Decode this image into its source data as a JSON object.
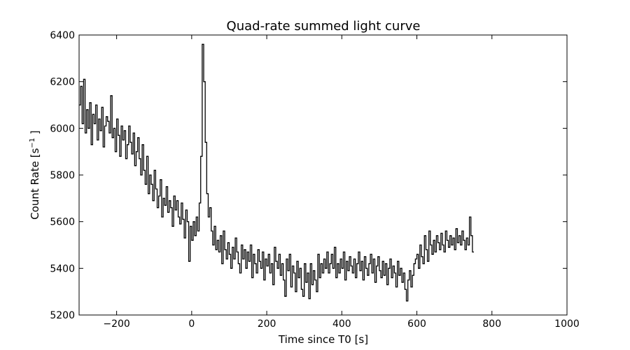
{
  "chart_data": {
    "type": "line",
    "title": "Quad-rate summed light curve",
    "xlabel": "Time since T0 [s]",
    "ylabel_main": "Count Rate [s",
    "ylabel_sup": "−1",
    "ylabel_end": " ]",
    "xlim": [
      -300,
      1000
    ],
    "ylim": [
      5200,
      6400
    ],
    "xticks": [
      -200,
      0,
      200,
      400,
      600,
      800,
      1000
    ],
    "xtick_labels": [
      "−200",
      "0",
      "200",
      "400",
      "600",
      "800",
      "1000"
    ],
    "yticks": [
      5200,
      5400,
      5600,
      5800,
      6000,
      6200,
      6400
    ],
    "ytick_labels": [
      "5200",
      "5400",
      "5600",
      "5800",
      "6000",
      "6200",
      "6400"
    ],
    "grid": false,
    "line_color": "#000000",
    "series": [
      {
        "step": 4,
        "x_start": -300,
        "values": [
          6100,
          6180,
          6020,
          6210,
          5980,
          6080,
          6000,
          6110,
          5930,
          6060,
          6020,
          6100,
          5950,
          6040,
          5990,
          6090,
          5920,
          6010,
          6050,
          6030,
          5980,
          6140,
          5960,
          6000,
          5900,
          6040,
          5970,
          5880,
          6010,
          5950,
          5990,
          5870,
          5930,
          6010,
          5940,
          5890,
          5980,
          5840,
          5900,
          5960,
          5870,
          5800,
          5930,
          5820,
          5760,
          5880,
          5720,
          5800,
          5760,
          5690,
          5820,
          5740,
          5660,
          5710,
          5780,
          5620,
          5700,
          5670,
          5750,
          5640,
          5690,
          5660,
          5580,
          5710,
          5650,
          5690,
          5620,
          5590,
          5680,
          5610,
          5530,
          5650,
          5600,
          5430,
          5580,
          5520,
          5600,
          5540,
          5620,
          5560,
          5680,
          5880,
          6360,
          6200,
          5940,
          5720,
          5620,
          5660,
          5560,
          5500,
          5580,
          5480,
          5520,
          5470,
          5540,
          5420,
          5560,
          5480,
          5440,
          5510,
          5460,
          5400,
          5490,
          5440,
          5530,
          5470,
          5420,
          5380,
          5500,
          5440,
          5480,
          5400,
          5470,
          5430,
          5500,
          5360,
          5460,
          5420,
          5380,
          5480,
          5430,
          5400,
          5470,
          5350,
          5440,
          5410,
          5460,
          5380,
          5420,
          5330,
          5490,
          5430,
          5400,
          5460,
          5370,
          5420,
          5350,
          5280,
          5440,
          5390,
          5460,
          5320,
          5410,
          5380,
          5300,
          5430,
          5360,
          5400,
          5310,
          5280,
          5420,
          5340,
          5380,
          5270,
          5420,
          5330,
          5390,
          5350,
          5300,
          5460,
          5360,
          5420,
          5380,
          5440,
          5400,
          5470,
          5380,
          5420,
          5460,
          5400,
          5490,
          5360,
          5420,
          5380,
          5440,
          5400,
          5470,
          5350,
          5430,
          5390,
          5450,
          5410,
          5380,
          5440,
          5360,
          5420,
          5470,
          5390,
          5430,
          5350,
          5450,
          5400,
          5370,
          5420,
          5460,
          5380,
          5440,
          5340,
          5410,
          5450,
          5390,
          5360,
          5430,
          5370,
          5420,
          5330,
          5400,
          5440,
          5360,
          5410,
          5380,
          5320,
          5430,
          5370,
          5400,
          5340,
          5380,
          5310,
          5260,
          5350,
          5390,
          5320,
          5370,
          5420,
          5440,
          5460,
          5400,
          5500,
          5450,
          5420,
          5540,
          5480,
          5430,
          5560,
          5500,
          5460,
          5520,
          5470,
          5540,
          5510,
          5480,
          5550,
          5500,
          5470,
          5560,
          5520,
          5490,
          5540,
          5500,
          5530,
          5480,
          5570,
          5510,
          5540,
          5500,
          5560,
          5520,
          5480,
          5530,
          5500,
          5620,
          5540,
          5470
        ]
      }
    ]
  }
}
